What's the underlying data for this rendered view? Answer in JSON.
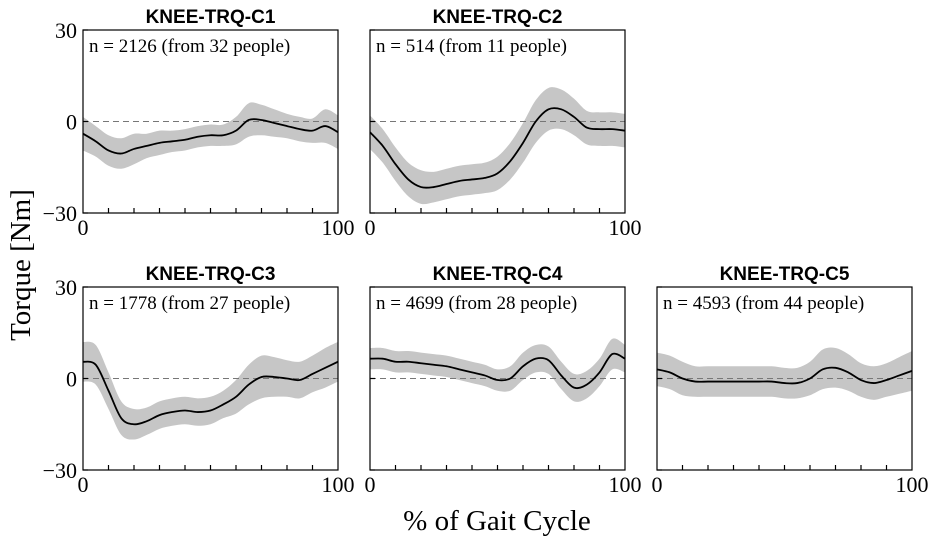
{
  "chart_data": {
    "type": "line",
    "ylabel": "Torque [Nm]",
    "xlabel": "% of Gait Cycle",
    "xlim": [
      0,
      100
    ],
    "ylim": [
      -30,
      30
    ],
    "y_reference_line": 0,
    "subplots": [
      {
        "title": "KNEE-TRQ-C1",
        "n_label": "n = 2126 (from 32 people)",
        "x": [
          0,
          5,
          10,
          15,
          20,
          25,
          30,
          35,
          40,
          45,
          50,
          55,
          60,
          65,
          70,
          75,
          80,
          85,
          90,
          95,
          100
        ],
        "mean": [
          -4,
          -6.5,
          -9.5,
          -10.5,
          -9,
          -8,
          -7,
          -6.5,
          -6,
          -5,
          -4.5,
          -4.5,
          -3,
          0.5,
          0.5,
          -0.5,
          -1.5,
          -2.5,
          -3,
          -1.5,
          -3.5
        ],
        "sd": [
          5.5,
          5,
          5,
          5,
          5,
          4,
          4,
          3.5,
          3.5,
          3.5,
          3.5,
          3.5,
          4.5,
          5.5,
          5,
          4.5,
          4,
          4,
          4,
          5.5,
          5.5
        ],
        "tick_labels_y": [
          "30",
          "0",
          "−30"
        ],
        "tick_labels_x": [
          "0",
          "100"
        ]
      },
      {
        "title": "KNEE-TRQ-C2",
        "n_label": "n = 514 (from 11 people)",
        "x": [
          0,
          5,
          10,
          15,
          20,
          25,
          30,
          35,
          40,
          45,
          50,
          55,
          60,
          65,
          70,
          75,
          80,
          85,
          90,
          95,
          100
        ],
        "mean": [
          -3.5,
          -8,
          -14,
          -19,
          -21.5,
          -21.5,
          -20.5,
          -19.5,
          -19,
          -18.5,
          -17,
          -13,
          -7,
          0,
          4,
          4,
          1.5,
          -2,
          -2.5,
          -2.5,
          -3
        ],
        "sd": [
          5.5,
          5.5,
          5.5,
          5.5,
          5.5,
          5,
          5,
          5,
          5,
          5,
          5.5,
          6,
          6.5,
          7,
          7,
          6.5,
          6,
          5.5,
          5.5,
          5.5,
          5.5
        ],
        "tick_labels_y": [],
        "tick_labels_x": [
          "0",
          "100"
        ]
      },
      {
        "title": "KNEE-TRQ-C3",
        "n_label": "n = 1778 (from 27 people)",
        "x": [
          0,
          5,
          10,
          15,
          20,
          25,
          30,
          35,
          40,
          45,
          50,
          55,
          60,
          65,
          70,
          75,
          80,
          85,
          90,
          95,
          100
        ],
        "mean": [
          5.5,
          4.5,
          -4,
          -13,
          -15,
          -14,
          -12,
          -11,
          -10.5,
          -11,
          -10.5,
          -8.5,
          -6,
          -2,
          0.5,
          0.5,
          0,
          -0.5,
          1.5,
          3.5,
          5.5
        ],
        "sd": [
          6.5,
          6.5,
          6,
          5.5,
          5,
          4.5,
          4.5,
          4.5,
          4.5,
          4.5,
          4.5,
          4.5,
          5.5,
          6.5,
          7,
          6.5,
          6,
          6,
          6,
          6.5,
          6.5
        ],
        "tick_labels_y": [
          "30",
          "0",
          "−30"
        ],
        "tick_labels_x": [
          "0",
          "100"
        ]
      },
      {
        "title": "KNEE-TRQ-C4",
        "n_label": "n = 4699 (from 28 people)",
        "x": [
          0,
          5,
          10,
          15,
          20,
          25,
          30,
          35,
          40,
          45,
          50,
          55,
          60,
          65,
          70,
          75,
          80,
          85,
          90,
          95,
          100
        ],
        "mean": [
          6.5,
          6.5,
          5.5,
          5.5,
          5,
          4.5,
          4,
          3,
          2,
          1,
          -0.5,
          0,
          4,
          6.5,
          6,
          1,
          -3,
          -2,
          2,
          8,
          6.5
        ],
        "sd": [
          3.5,
          3.5,
          3.5,
          3.5,
          3.5,
          3.5,
          3.5,
          3.5,
          3.5,
          3.5,
          3.5,
          4,
          4.5,
          4.5,
          4.5,
          4.5,
          4.5,
          4.5,
          4.5,
          5,
          4.5
        ],
        "tick_labels_y": [],
        "tick_labels_x": [
          "0",
          "100"
        ]
      },
      {
        "title": "KNEE-TRQ-C5",
        "n_label": "n = 4593 (from 44 people)",
        "x": [
          0,
          5,
          10,
          15,
          20,
          25,
          30,
          35,
          40,
          45,
          50,
          55,
          60,
          65,
          70,
          75,
          80,
          85,
          90,
          95,
          100
        ],
        "mean": [
          3,
          2,
          0,
          -1,
          -1,
          -1,
          -1,
          -1,
          -1,
          -1,
          -1.5,
          -1.5,
          0,
          3,
          3.5,
          2,
          -0.5,
          -1.5,
          -0.5,
          1,
          2.5
        ],
        "sd": [
          5.5,
          5.5,
          5.5,
          5,
          5,
          5,
          5,
          5,
          5,
          5,
          5,
          5,
          5.5,
          6.5,
          6.5,
          6,
          5.5,
          5.5,
          5.5,
          6,
          6.5
        ],
        "tick_labels_y": [],
        "tick_labels_x": [
          "0",
          "100"
        ]
      }
    ]
  }
}
